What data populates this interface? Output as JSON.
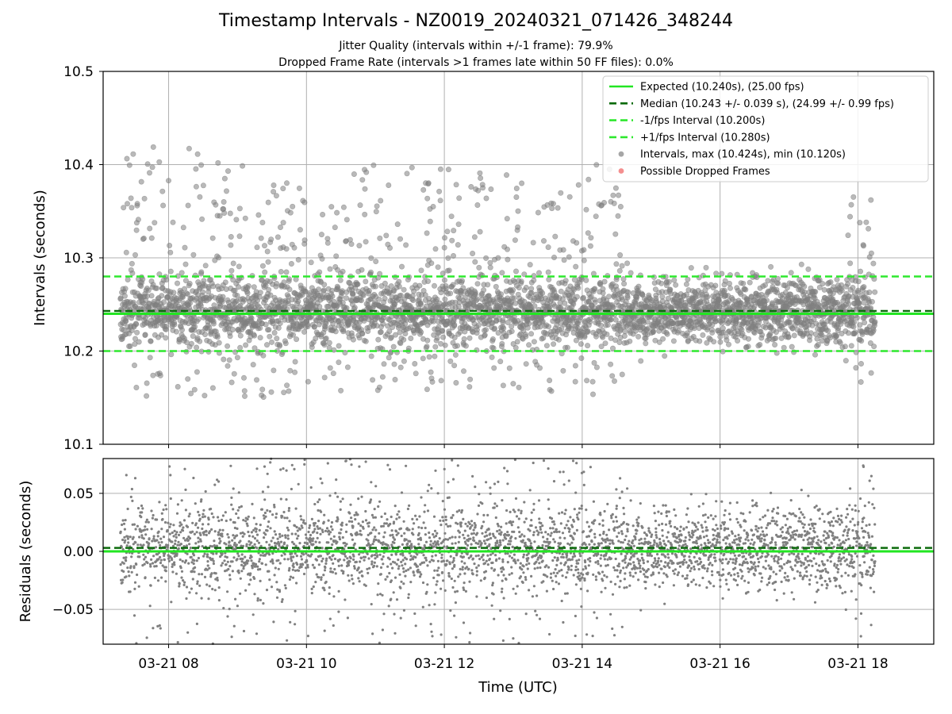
{
  "title": "Timestamp Intervals - NZ0019_20240321_071426_348244",
  "subtitle1": "Jitter Quality (intervals within +/-1 frame): 79.9%",
  "subtitle2": "Dropped Frame Rate (intervals >1 frames late within 50 FF files): 0.0%",
  "colors": {
    "expected": "#22e622",
    "median": "#0a6b0a",
    "fps_band": "#2ee82e",
    "points": "#808080",
    "dropped": "#f06060",
    "grid": "#b0b0b0"
  },
  "chart_data": [
    {
      "type": "scatter",
      "panel": "intervals",
      "xlabel": "",
      "ylabel": "Intervals (seconds)",
      "xlim": [
        7.05,
        19.1
      ],
      "ylim": [
        10.1,
        10.5
      ],
      "x_ticks": [
        8,
        10,
        12,
        14,
        16,
        18
      ],
      "x_tick_labels": [
        "03-21 08",
        "03-21 10",
        "03-21 12",
        "03-21 14",
        "03-21 16",
        "03-21 18"
      ],
      "y_ticks": [
        10.1,
        10.2,
        10.3,
        10.4,
        10.5
      ],
      "y_tick_labels": [
        "10.1",
        "10.2",
        "10.3",
        "10.4",
        "10.5"
      ],
      "grid": true,
      "legend_position": "top-right",
      "reference_lines": [
        {
          "name": "Expected (10.240s), (25.00 fps)",
          "y": 10.24,
          "style": "solid",
          "color_key": "expected"
        },
        {
          "name": "Median (10.243 +/- 0.039 s), (24.99 +/- 0.99 fps)",
          "y": 10.243,
          "style": "dashed",
          "color_key": "median"
        },
        {
          "name": "-1/fps Interval (10.200s)",
          "y": 10.2,
          "style": "dashed",
          "color_key": "fps_band"
        },
        {
          "name": "+1/fps Interval (10.280s)",
          "y": 10.28,
          "style": "dashed",
          "color_key": "fps_band"
        }
      ],
      "series": [
        {
          "name": "Intervals, max (10.424s), min (10.120s)",
          "x_range": [
            7.3,
            18.25
          ],
          "count": 3850,
          "max": 10.424,
          "min": 10.12,
          "median": 10.243,
          "spread_segments": [
            {
              "x": [
                7.3,
                8.8
              ],
              "typical": [
                10.15,
                10.42
              ]
            },
            {
              "x": [
                8.8,
                14.6
              ],
              "typical": [
                10.15,
                10.4
              ]
            },
            {
              "x": [
                14.6,
                17.8
              ],
              "typical": [
                10.19,
                10.3
              ]
            },
            {
              "x": [
                17.8,
                18.25
              ],
              "typical": [
                10.16,
                10.38
              ]
            }
          ]
        },
        {
          "name": "Possible Dropped Frames",
          "x": [],
          "y": []
        }
      ]
    },
    {
      "type": "scatter",
      "panel": "residuals",
      "xlabel": "Time (UTC)",
      "ylabel": "Residuals (seconds)",
      "xlim": [
        7.05,
        19.1
      ],
      "ylim": [
        -0.08,
        0.08
      ],
      "x_ticks": [
        8,
        10,
        12,
        14,
        16,
        18
      ],
      "x_tick_labels": [
        "03-21 08",
        "03-21 10",
        "03-21 12",
        "03-21 14",
        "03-21 16",
        "03-21 18"
      ],
      "y_ticks": [
        0.05,
        0.0,
        -0.05
      ],
      "y_tick_labels": [
        "0.05",
        "0.00",
        "−0.05"
      ],
      "grid": true,
      "reference_lines": [
        {
          "y": 0.0,
          "style": "solid",
          "color_key": "expected"
        },
        {
          "y": 0.003,
          "style": "dashed",
          "color_key": "median"
        }
      ],
      "series": [
        {
          "x_range": [
            7.3,
            18.25
          ],
          "count": 3850
        }
      ]
    }
  ]
}
